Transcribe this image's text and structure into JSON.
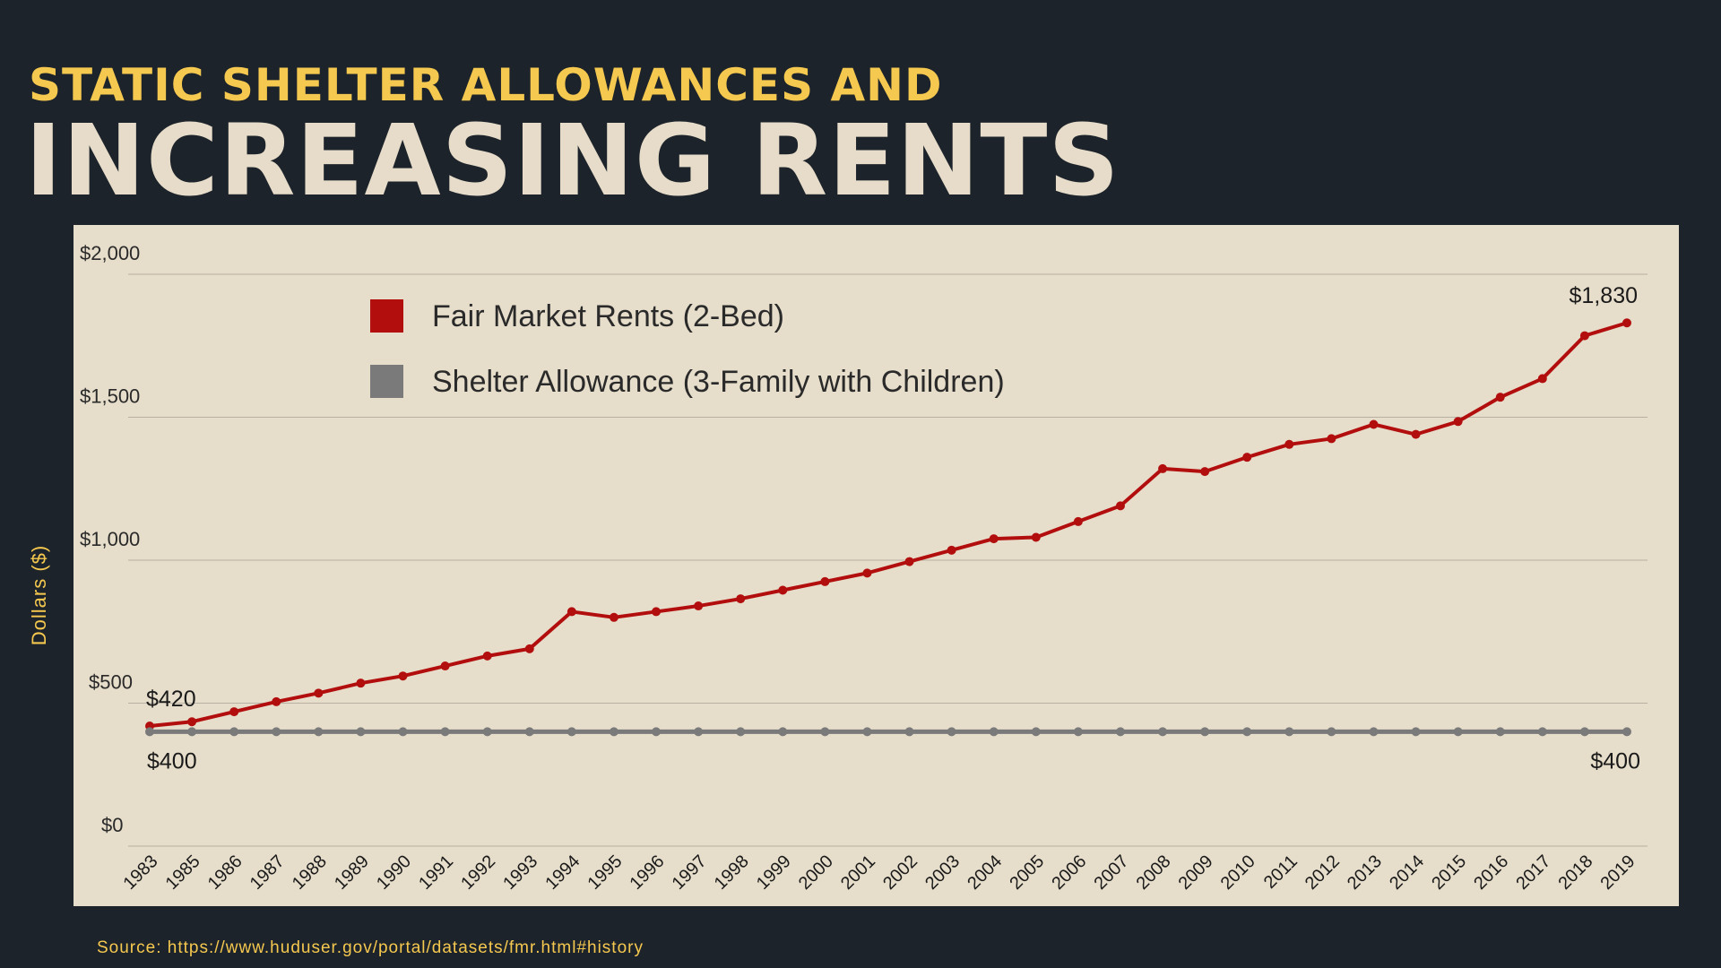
{
  "header": {
    "subtitle": "STATIC SHELTER ALLOWANCES AND",
    "title": "INCREASING RENTS"
  },
  "footer": {
    "source": "Source: https://www.huduser.gov/portal/datasets/fmr.html#history"
  },
  "colors": {
    "background": "#1d232a",
    "panel": "#e6ddca",
    "accent_yellow": "#f5c84f",
    "title_cream": "#e6dcc9",
    "rent_red": "#b30e0e",
    "allowance_gray": "#7a7a7a",
    "grid": "#b8b0a2"
  },
  "chart_data": {
    "type": "line",
    "title": "INCREASING RENTS",
    "xlabel": "",
    "ylabel": "Dollars ($)",
    "ylim": [
      0,
      2000
    ],
    "yticks": [
      0,
      500,
      1000,
      1500,
      2000
    ],
    "ytick_labels": [
      "$0",
      "$500",
      "$1,000",
      "$1,500",
      "$2,000"
    ],
    "legend_position": "top-center",
    "grid": true,
    "categories": [
      "1983",
      "1985",
      "1986",
      "1987",
      "1988",
      "1989",
      "1990",
      "1991",
      "1992",
      "1993",
      "1994",
      "1995",
      "1996",
      "1997",
      "1998",
      "1999",
      "2000",
      "2001",
      "2002",
      "2003",
      "2004",
      "2005",
      "2006",
      "2007",
      "2008",
      "2009",
      "2010",
      "2011",
      "2012",
      "2013",
      "2014",
      "2015",
      "2016",
      "2017",
      "2018",
      "2019"
    ],
    "series": [
      {
        "name": "Fair Market Rents (2-Bed)",
        "color": "#b30e0e",
        "values": [
          420,
          435,
          470,
          505,
          535,
          570,
          595,
          630,
          665,
          690,
          820,
          800,
          820,
          840,
          865,
          895,
          925,
          955,
          995,
          1035,
          1075,
          1080,
          1135,
          1190,
          1320,
          1310,
          1360,
          1405,
          1425,
          1475,
          1440,
          1485,
          1570,
          1635,
          1785,
          1830
        ]
      },
      {
        "name": "Shelter Allowance (3-Family with Children)",
        "color": "#7a7a7a",
        "values": [
          400,
          400,
          400,
          400,
          400,
          400,
          400,
          400,
          400,
          400,
          400,
          400,
          400,
          400,
          400,
          400,
          400,
          400,
          400,
          400,
          400,
          400,
          400,
          400,
          400,
          400,
          400,
          400,
          400,
          400,
          400,
          400,
          400,
          400,
          400,
          400
        ]
      }
    ],
    "annotations": [
      {
        "text": "$420",
        "series": 0,
        "index": 0
      },
      {
        "text": "$1,830",
        "series": 0,
        "index": 35
      },
      {
        "text": "$400",
        "series": 1,
        "index": 0
      },
      {
        "text": "$400",
        "series": 1,
        "index": 35
      }
    ]
  }
}
